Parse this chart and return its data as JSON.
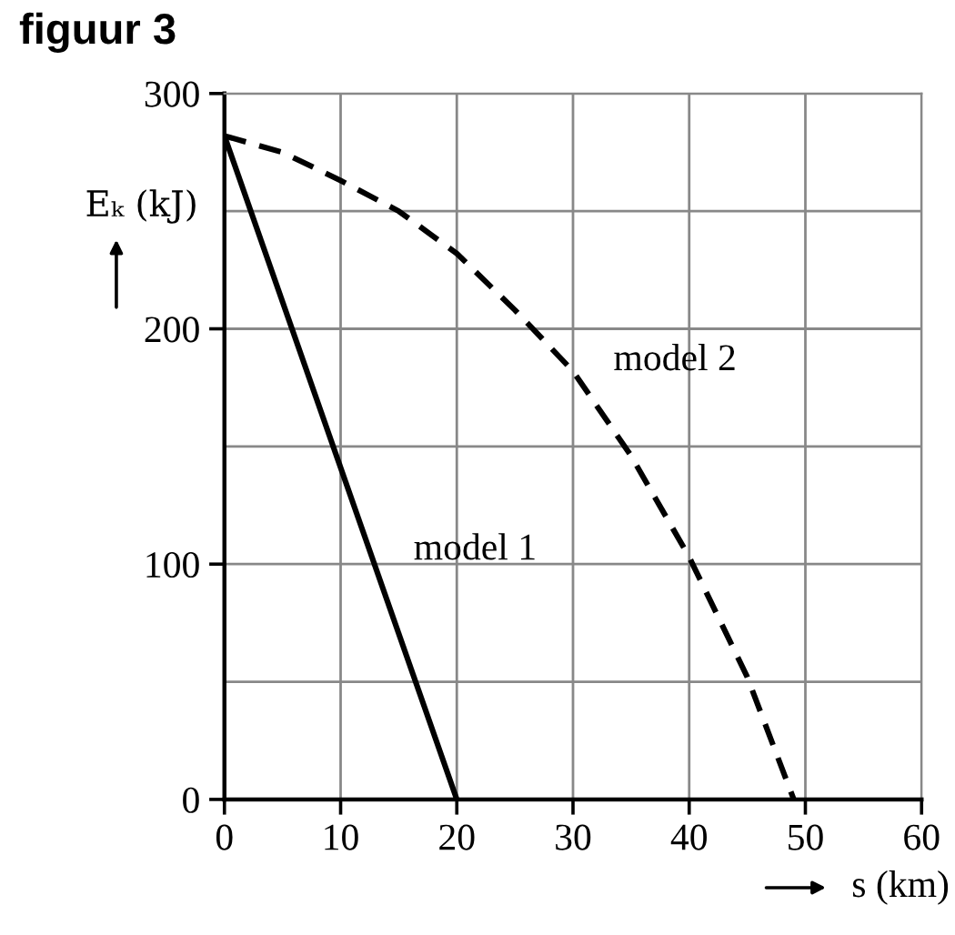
{
  "chart_data": {
    "type": "line",
    "title": "figuur 3",
    "xlabel": "s (km)",
    "ylabel": "Eₖ (kJ)",
    "xlim": [
      0,
      60
    ],
    "ylim": [
      0,
      300
    ],
    "xticks": [
      0,
      10,
      20,
      30,
      40,
      50,
      60
    ],
    "yticks": [
      0,
      {
        "value": 50,
        "label": null
      },
      100,
      {
        "value": 150,
        "label": null
      },
      200,
      {
        "value": 250,
        "label": null
      },
      300
    ],
    "grid": true,
    "legend": false,
    "series": [
      {
        "name": "model 1",
        "color": "#000000",
        "line_style": "solid",
        "x": [
          0,
          20
        ],
        "values": [
          282,
          0
        ]
      },
      {
        "name": "model 2",
        "color": "#000000",
        "line_style": "dashed",
        "x": [
          0,
          5,
          10,
          15,
          20,
          25,
          30,
          35,
          40,
          45,
          49
        ],
        "values": [
          282,
          275,
          263,
          250,
          232,
          208,
          182,
          146,
          103,
          52,
          0
        ]
      }
    ]
  }
}
